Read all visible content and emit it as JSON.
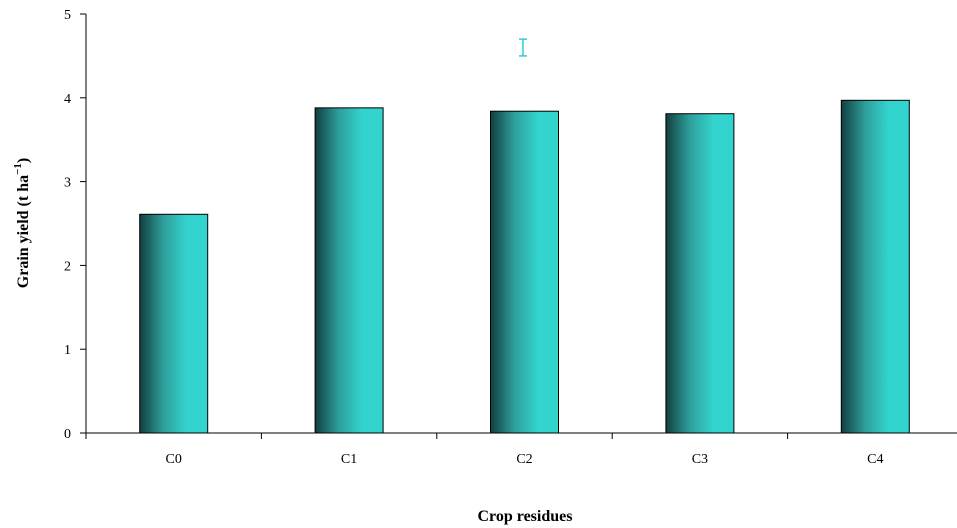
{
  "chart_data": {
    "type": "bar",
    "categories": [
      "C0",
      "C1",
      "C2",
      "C3",
      "C4"
    ],
    "values": [
      2.61,
      3.88,
      3.84,
      3.81,
      3.97
    ],
    "title": "",
    "xlabel": "Crop residues",
    "ylabel": {
      "prefix": "Grain yield (t ha",
      "superscript": "−1",
      "suffix": ")"
    },
    "ylim": [
      0,
      5
    ],
    "yticks": [
      "0",
      "1",
      "2",
      "3",
      "4",
      "5"
    ],
    "grid": false,
    "legend": "none",
    "error_bar": {
      "center": 4.6,
      "half_width": 0.1
    },
    "colors": {
      "bar_dark": "#123f3f",
      "bar_mid": "#2e9f9c",
      "bar_light": "#33d4cd",
      "error_bar": "#33cccc"
    }
  }
}
